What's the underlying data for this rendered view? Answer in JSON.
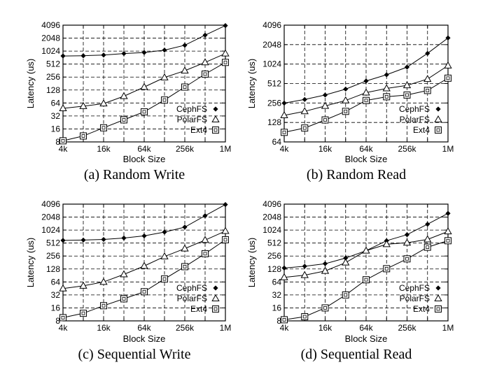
{
  "chart_data": [
    {
      "type": "line",
      "caption": "(a) Random Write",
      "xlabel": "Block Size",
      "ylabel": "Latency (us)",
      "categories": [
        "4k",
        "8k",
        "16k",
        "32k",
        "64k",
        "128k",
        "256k",
        "512k",
        "1M"
      ],
      "x_tick_labels": [
        "4k",
        "16k",
        "64k",
        "256k",
        "1M"
      ],
      "y_ticks": [
        8,
        16,
        32,
        64,
        128,
        256,
        512,
        1024,
        2048,
        4096
      ],
      "ylim": [
        8,
        4096
      ],
      "yscale": "log2",
      "series": [
        {
          "name": "CephFS",
          "marker": "diamond",
          "values": [
            790,
            800,
            830,
            900,
            950,
            1080,
            1400,
            2400,
            4000
          ]
        },
        {
          "name": "PolarFS",
          "marker": "triangle",
          "values": [
            48,
            54,
            62,
            92,
            150,
            250,
            360,
            560,
            900
          ]
        },
        {
          "name": "Ext4",
          "marker": "square",
          "values": [
            8.5,
            11,
            17,
            26,
            40,
            75,
            150,
            300,
            560
          ]
        }
      ]
    },
    {
      "type": "line",
      "caption": "(b) Random Read",
      "xlabel": "Block Size",
      "ylabel": "Latency (us)",
      "categories": [
        "4k",
        "8k",
        "16k",
        "32k",
        "64k",
        "128k",
        "256k",
        "512k",
        "1M"
      ],
      "x_tick_labels": [
        "4k",
        "16k",
        "64k",
        "256k",
        "1M"
      ],
      "y_ticks": [
        64,
        128,
        256,
        512,
        1024,
        2048,
        4096
      ],
      "ylim": [
        64,
        4096
      ],
      "yscale": "log2",
      "series": [
        {
          "name": "CephFS",
          "marker": "diamond",
          "values": [
            255,
            290,
            340,
            420,
            560,
            700,
            920,
            1500,
            2600
          ]
        },
        {
          "name": "PolarFS",
          "marker": "triangle",
          "values": [
            165,
            190,
            230,
            280,
            370,
            430,
            480,
            600,
            970
          ]
        },
        {
          "name": "Ext4",
          "marker": "square",
          "values": [
            90,
            105,
            140,
            190,
            280,
            320,
            340,
            400,
            620
          ]
        }
      ]
    },
    {
      "type": "line",
      "caption": "(c) Sequential Write",
      "xlabel": "Block Size",
      "ylabel": "Latency (us)",
      "categories": [
        "4k",
        "8k",
        "16k",
        "32k",
        "64k",
        "128k",
        "256k",
        "512k",
        "1M"
      ],
      "x_tick_labels": [
        "4k",
        "16k",
        "64k",
        "256k",
        "1M"
      ],
      "y_ticks": [
        8,
        16,
        32,
        64,
        128,
        256,
        512,
        1024,
        2048,
        4096
      ],
      "ylim": [
        8,
        4096
      ],
      "yscale": "log2",
      "series": [
        {
          "name": "CephFS",
          "marker": "diamond",
          "values": [
            590,
            600,
            620,
            670,
            750,
            920,
            1200,
            2200,
            4000
          ]
        },
        {
          "name": "PolarFS",
          "marker": "triangle",
          "values": [
            45,
            52,
            64,
            96,
            150,
            250,
            380,
            600,
            970
          ]
        },
        {
          "name": "Ext4",
          "marker": "square",
          "values": [
            9.5,
            12,
            18,
            26,
            38,
            75,
            145,
            290,
            610
          ]
        }
      ]
    },
    {
      "type": "line",
      "caption": "(d) Sequential Read",
      "xlabel": "Block Size",
      "ylabel": "Latency (us)",
      "categories": [
        "4k",
        "8k",
        "16k",
        "32k",
        "64k",
        "128k",
        "256k",
        "512k",
        "1M"
      ],
      "x_tick_labels": [
        "4k",
        "16k",
        "64k",
        "256k",
        "1M"
      ],
      "y_ticks": [
        8,
        16,
        32,
        64,
        128,
        256,
        512,
        1024,
        2048,
        4096
      ],
      "ylim": [
        8,
        4096
      ],
      "yscale": "log2",
      "series": [
        {
          "name": "CephFS",
          "marker": "diamond",
          "values": [
            135,
            148,
            170,
            230,
            340,
            580,
            800,
            1400,
            2500
          ]
        },
        {
          "name": "PolarFS",
          "marker": "triangle",
          "values": [
            82,
            92,
            115,
            180,
            340,
            480,
            520,
            620,
            950
          ]
        },
        {
          "name": "Ext4",
          "marker": "square",
          "values": [
            8.5,
            10,
            16,
            32,
            72,
            130,
            220,
            410,
            580
          ]
        }
      ]
    }
  ]
}
